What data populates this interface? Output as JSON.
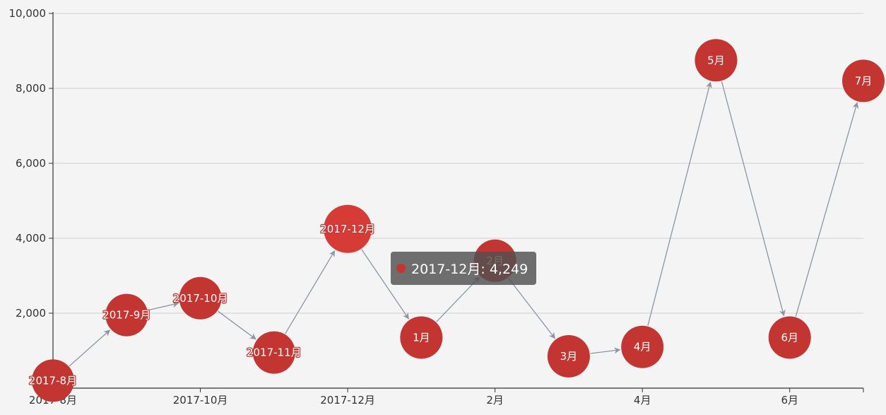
{
  "chart_data": {
    "type": "graph",
    "title": "",
    "xlabel": "",
    "ylabel": "",
    "ylim": [
      0,
      10000
    ],
    "y_ticks": [
      2000,
      4000,
      6000,
      8000,
      10000
    ],
    "y_tick_labels": [
      "2,000",
      "4,000",
      "6,000",
      "8,000",
      "10,000"
    ],
    "x_ticks": [
      {
        "label": "2017-8月",
        "index": 0
      },
      {
        "label": "2017-10月",
        "index": 2
      },
      {
        "label": "2017-12月",
        "index": 4
      },
      {
        "label": "2月",
        "index": 6
      },
      {
        "label": "4月",
        "index": 8
      },
      {
        "label": "6月",
        "index": 10
      }
    ],
    "grid": true,
    "colors": {
      "node": "#c23531",
      "node_emphasis": "#d63b36",
      "edge": "#8a96a3",
      "grid": "#d6d6d6",
      "axis": "#333333"
    },
    "nodes": [
      {
        "label": "2017-8月",
        "value": 200,
        "outlined": true
      },
      {
        "label": "2017-9月",
        "value": 1950,
        "outlined": true
      },
      {
        "label": "2017-10月",
        "value": 2400,
        "outlined": true
      },
      {
        "label": "2017-11月",
        "value": 950,
        "outlined": true
      },
      {
        "label": "2017-12月",
        "value": 4249,
        "outlined": true,
        "emphasis": true
      },
      {
        "label": "1月",
        "value": 1350,
        "outlined": false
      },
      {
        "label": "2月",
        "value": 3400,
        "outlined": false
      },
      {
        "label": "3月",
        "value": 850,
        "outlined": false
      },
      {
        "label": "4月",
        "value": 1100,
        "outlined": false
      },
      {
        "label": "5月",
        "value": 8750,
        "outlined": false
      },
      {
        "label": "6月",
        "value": 1350,
        "outlined": false
      },
      {
        "label": "7月",
        "value": 8200,
        "outlined": false
      }
    ],
    "edges": "sequential"
  },
  "tooltip": {
    "label": "2017-12月: 4,249"
  }
}
